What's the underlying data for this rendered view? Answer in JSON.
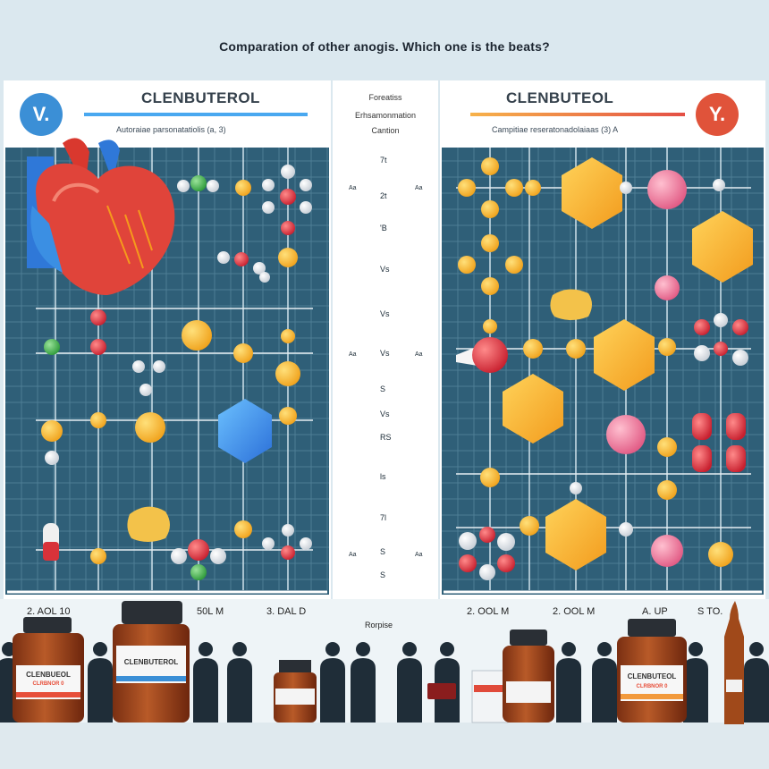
{
  "title": "Comparation of other anogis. Which one is the beats?",
  "left_panel": {
    "badge": "V.",
    "badge_color": "#3b8fd6",
    "heading": "CLENBUTEROL",
    "subtitle": "Autoraiae parsonatatiolis (a, 3)",
    "accent_color": "#49a8f0"
  },
  "right_panel": {
    "badge": "Y.",
    "badge_color": "#e0533a",
    "heading": "CLENBUTEOL",
    "subtitle": "Campitiae reseratonadolaiaas (3) A",
    "accent_color": "#f29a3c"
  },
  "center_header": {
    "line1": "Foreatiss",
    "line2": "Erhsamonmation",
    "line3": "Cantion"
  },
  "row_labels": [
    "7t",
    "2t",
    "'B",
    "Vs",
    "Vs",
    "Vs",
    "S",
    "Vs",
    "RS",
    "ls",
    "7l",
    "S",
    "S"
  ],
  "left_tick_labels": [
    "Aa",
    "Aa",
    "Aa",
    "Aa"
  ],
  "right_tick_labels": [
    "Aa",
    "Aa",
    "Aa",
    "Aa"
  ],
  "bottom_labels": {
    "left1": "2. AOL 10",
    "left2": "50L M",
    "left3": "3. DAL D",
    "center": "Rorpise",
    "right1": "2. OOL M",
    "right2": "2. OOL M",
    "right3": "A. UP",
    "right4": "S TO."
  },
  "jar_labels": {
    "left": "CLENBUEOL",
    "left_sub": "CLRBNOR 0",
    "center": "CLENBUTEROL",
    "right": "CLENBUTEOL",
    "right_sub": "CLRBNOR 0"
  }
}
